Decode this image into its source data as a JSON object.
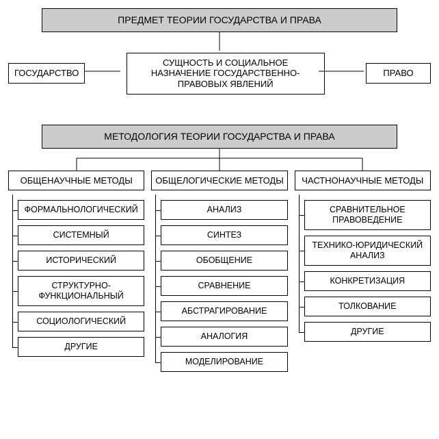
{
  "section1": {
    "header": "ПРЕДМЕТ ТЕОРИИ ГОСУДАРСТВА И ПРАВА",
    "left": "ГОСУДАРСТВО",
    "center": "СУЩНОСТЬ И СОЦИАЛЬНОЕ НАЗНАЧЕНИЕ ГОСУДАРСТВЕННО-ПРАВОВЫХ ЯВЛЕНИЙ",
    "right": "ПРАВО"
  },
  "section2": {
    "header": "МЕТОДОЛОГИЯ ТЕОРИИ ГОСУДАРСТВА И ПРАВА",
    "columns": [
      {
        "title": "ОБЩЕНАУЧНЫЕ МЕТОДЫ",
        "items": [
          "ФОРМАЛЬНОЛОГИЧЕСКИЙ",
          "СИСТЕМНЫЙ",
          "ИСТОРИЧЕСКИЙ",
          "СТРУКТУРНО-ФУНКЦИОНАЛЬНЫЙ",
          "СОЦИОЛОГИЧЕСКИЙ",
          "ДРУГИЕ"
        ]
      },
      {
        "title": "ОБЩЕЛОГИЧЕСКИЕ МЕТОДЫ",
        "items": [
          "АНАЛИЗ",
          "СИНТЕЗ",
          "ОБОБЩЕНИЕ",
          "СРАВНЕНИЕ",
          "АБСТРАГИРОВАНИЕ",
          "АНАЛОГИЯ",
          "МОДЕЛИРОВАНИЕ"
        ]
      },
      {
        "title": "ЧАСТНОНАУЧНЫЕ МЕТОДЫ",
        "items": [
          "СРАВНИТЕЛЬНОЕ ПРАВОВЕДЕНИЕ",
          "ТЕХНИКО-ЮРИДИЧЕСКИЙ АНАЛИЗ",
          "КОНКРЕТИЗАЦИЯ",
          "ТОЛКОВАНИЕ",
          "ДРУГИЕ"
        ]
      }
    ]
  },
  "style": {
    "header_bg": "#cccccc",
    "border_color": "#000000",
    "page_bg": "#ffffff",
    "font_family": "Arial, sans-serif",
    "header_fontsize_pt": 11,
    "body_fontsize_pt": 10
  }
}
